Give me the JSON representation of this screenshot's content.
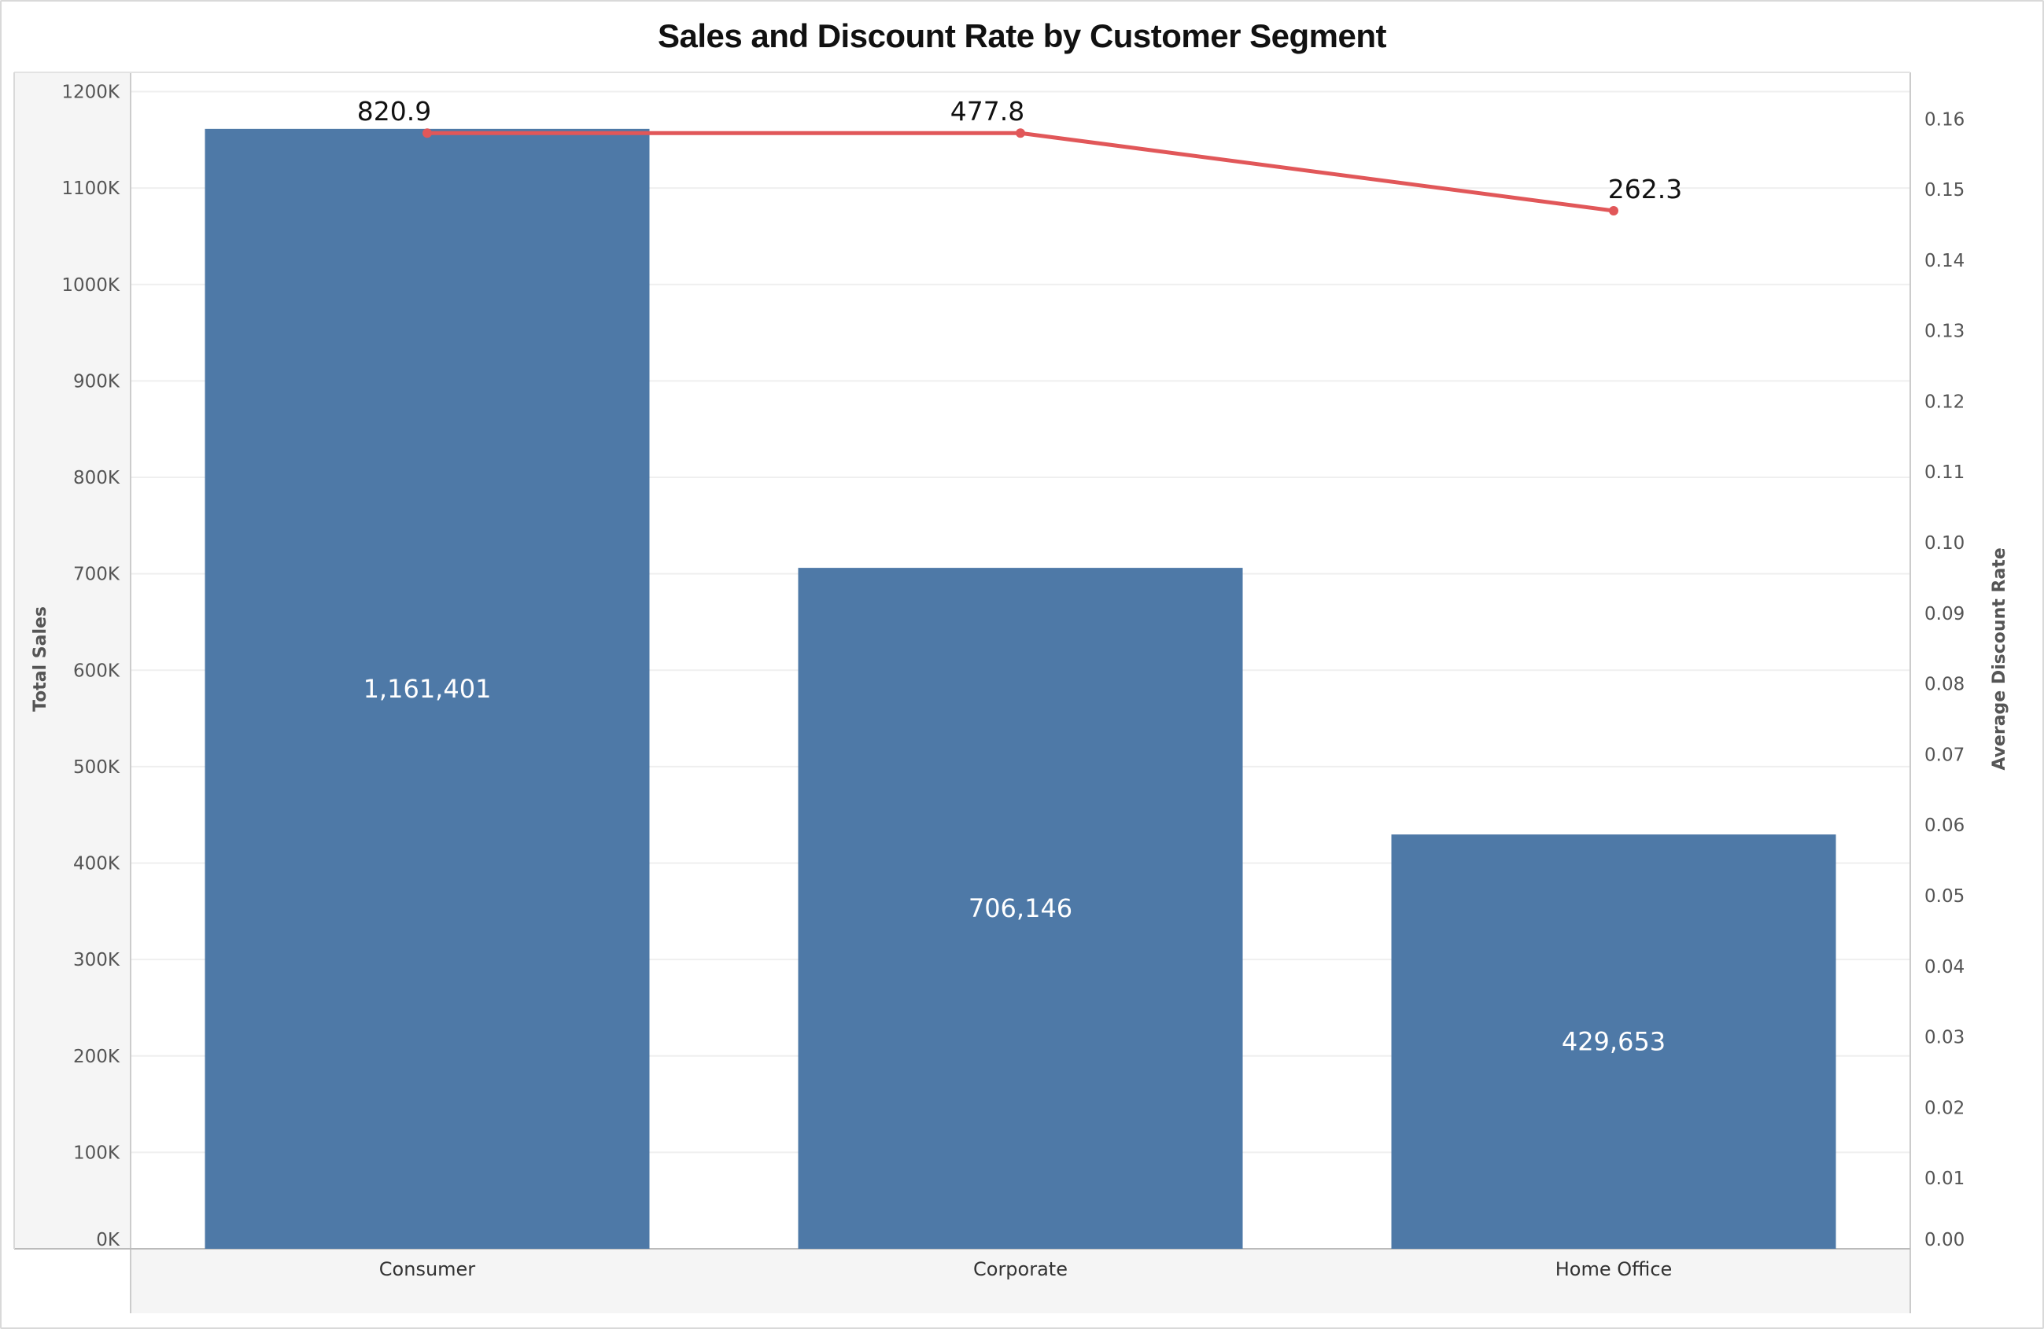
{
  "chart_data": {
    "type": "bar",
    "title": "Sales and Discount Rate by Customer Segment",
    "categories": [
      "Consumer",
      "Corporate",
      "Home Office"
    ],
    "series": [
      {
        "name": "Total Sales",
        "type": "bar",
        "axis": "left",
        "values": [
          1161401,
          706146,
          429653
        ],
        "labels": [
          "1,161,401",
          "706,146",
          "429,653"
        ]
      },
      {
        "name": "Average Discount Rate",
        "type": "line",
        "axis": "right",
        "values": [
          0.158,
          0.158,
          0.147
        ],
        "labels": [
          "820.9",
          "477.8",
          "262.3"
        ]
      }
    ],
    "ylabel": "Total Sales",
    "ylim": [
      0,
      1220000
    ],
    "yticks": [
      0,
      100000,
      200000,
      300000,
      400000,
      500000,
      600000,
      700000,
      800000,
      900000,
      1000000,
      1100000,
      1200000
    ],
    "ytick_labels": [
      "0K",
      "100K",
      "200K",
      "300K",
      "400K",
      "500K",
      "600K",
      "700K",
      "800K",
      "900K",
      "1000K",
      "1100K",
      "1200K"
    ],
    "y2label": "Average Discount Rate",
    "y2lim": [
      0,
      0.1666
    ],
    "y2ticks": [
      0,
      0.01,
      0.02,
      0.03,
      0.04,
      0.05,
      0.06,
      0.07,
      0.08,
      0.09,
      0.1,
      0.11,
      0.12,
      0.13,
      0.14,
      0.15,
      0.16
    ],
    "y2tick_labels": [
      "0.00",
      "0.01",
      "0.02",
      "0.03",
      "0.04",
      "0.05",
      "0.06",
      "0.07",
      "0.08",
      "0.09",
      "0.10",
      "0.11",
      "0.12",
      "0.13",
      "0.14",
      "0.15",
      "0.16"
    ],
    "grid": true,
    "colors": {
      "bar": "#4e79a7",
      "line": "#e15759"
    }
  }
}
